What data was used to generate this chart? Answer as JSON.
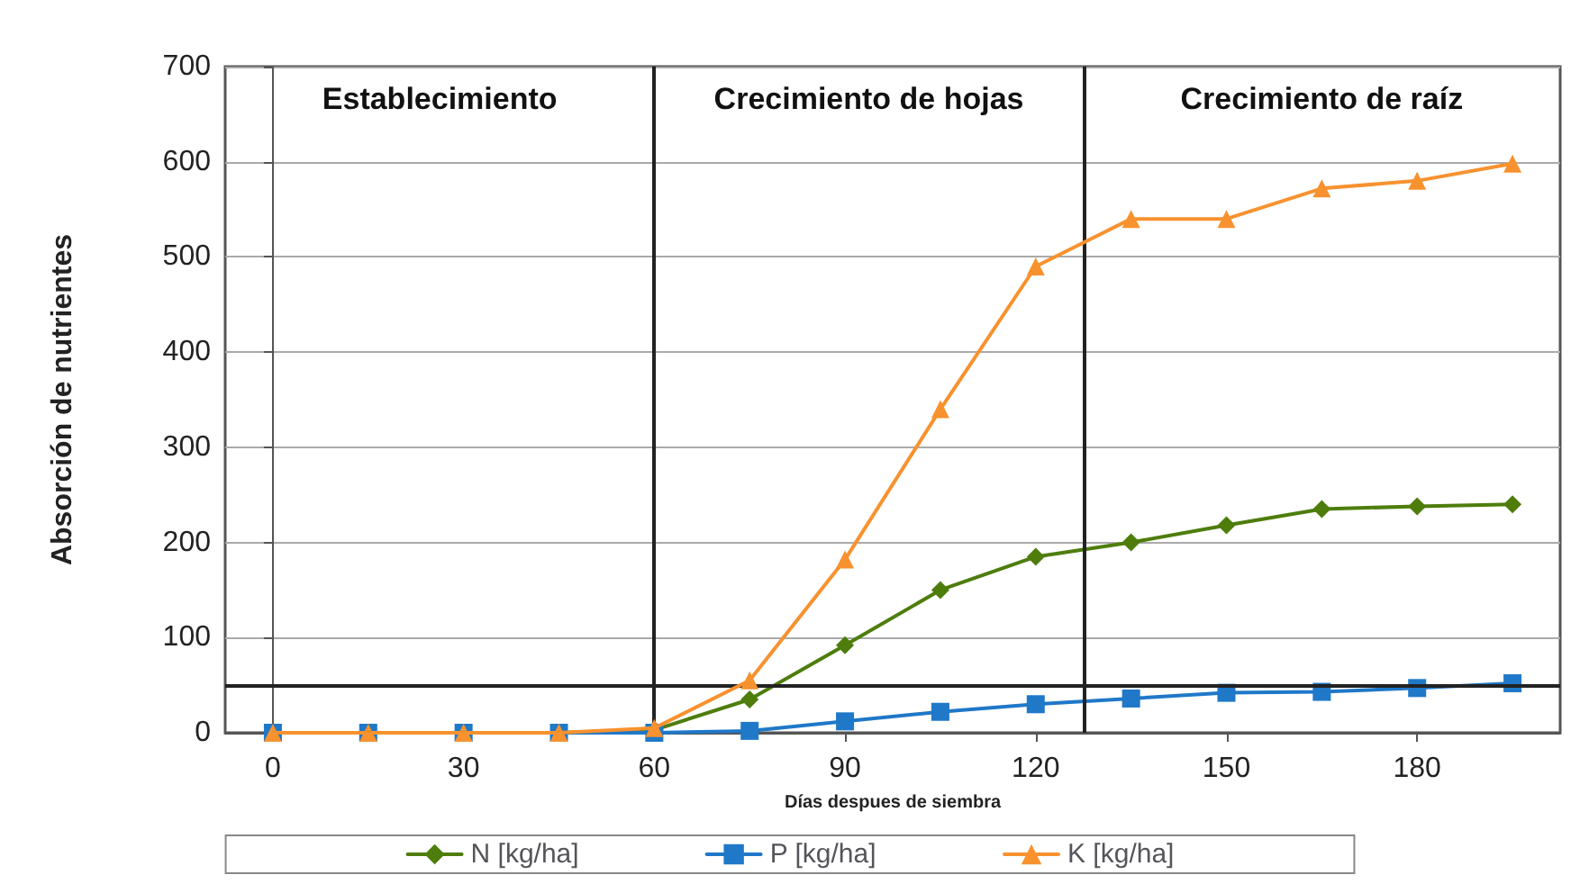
{
  "chart_data": {
    "type": "line",
    "xlabel": "Días despues de siembra",
    "ylabel": "Absorción de nutrientes",
    "x": [
      0,
      15,
      30,
      45,
      60,
      75,
      90,
      105,
      120,
      135,
      150,
      165,
      180,
      195
    ],
    "series": [
      {
        "name": "N [kg/ha]",
        "color": "#4e7d0c",
        "marker": "diamond",
        "values": [
          null,
          null,
          null,
          0,
          3,
          35,
          92,
          150,
          185,
          200,
          218,
          235,
          238,
          240
        ]
      },
      {
        "name": "P [kg/ha]",
        "color": "#1f78c8",
        "marker": "square",
        "values": [
          0,
          0,
          0,
          0,
          0,
          2,
          12,
          22,
          30,
          36,
          42,
          43,
          47,
          52
        ]
      },
      {
        "name": "K [kg/ha]",
        "color": "#f7922f",
        "marker": "triangle",
        "values": [
          0,
          0,
          0,
          0,
          5,
          55,
          182,
          340,
          490,
          540,
          540,
          572,
          580,
          598
        ]
      }
    ],
    "xlim": [
      -7.5,
      202.5
    ],
    "xticks": [
      0,
      30,
      60,
      90,
      120,
      150,
      180
    ],
    "ylim": [
      0,
      700
    ],
    "yticks": [
      0,
      100,
      200,
      300,
      400,
      500,
      600,
      700
    ],
    "grid": "y",
    "legend": "bottom",
    "line_style": "solid",
    "ref_lines": [
      {
        "axis": "x",
        "value": 60
      },
      {
        "axis": "x",
        "value": 127.5
      },
      {
        "axis": "y",
        "value": 50
      }
    ],
    "annotations": [
      "Establecimiento",
      "Crecimiento de hojas",
      "Crecimiento de raíz"
    ]
  }
}
